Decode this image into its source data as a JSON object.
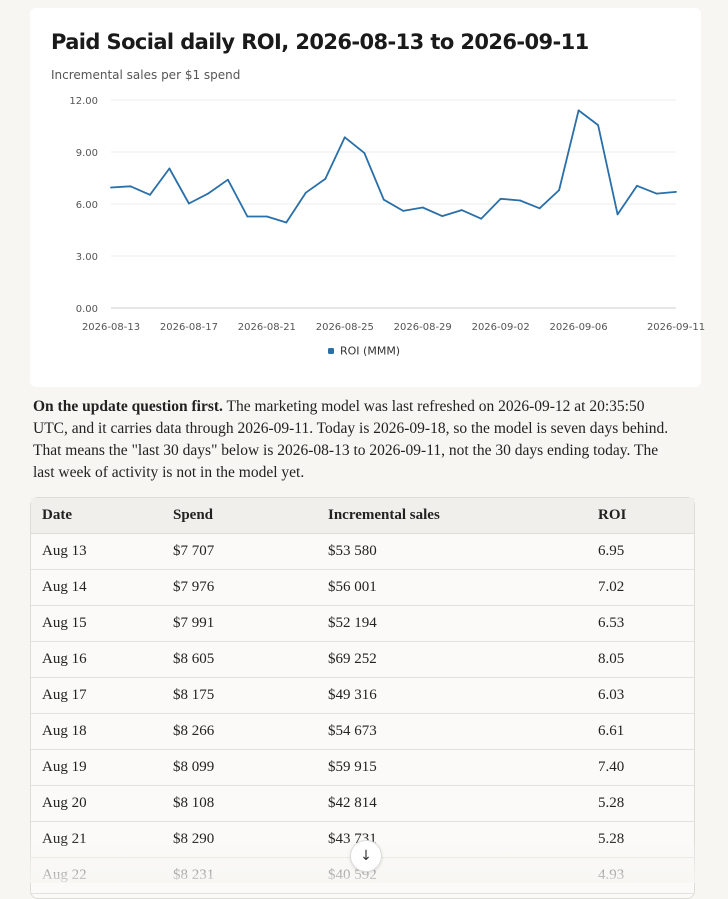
{
  "chart": {
    "title": "Paid Social daily ROI, 2026-08-13 to 2026-09-11",
    "subtitle": "Incremental sales per $1 spend"
  },
  "chart_data": {
    "type": "line",
    "title": "Paid Social daily ROI, 2026-08-13 to 2026-09-11",
    "subtitle": "Incremental sales per $1 spend",
    "x": [
      "2026-08-13",
      "2026-08-14",
      "2026-08-15",
      "2026-08-16",
      "2026-08-17",
      "2026-08-18",
      "2026-08-19",
      "2026-08-20",
      "2026-08-21",
      "2026-08-22",
      "2026-08-23",
      "2026-08-24",
      "2026-08-25",
      "2026-08-26",
      "2026-08-27",
      "2026-08-28",
      "2026-08-29",
      "2026-08-30",
      "2026-08-31",
      "2026-09-01",
      "2026-09-02",
      "2026-09-03",
      "2026-09-04",
      "2026-09-05",
      "2026-09-06",
      "2026-09-07",
      "2026-09-08",
      "2026-09-09",
      "2026-09-10",
      "2026-09-11"
    ],
    "series": [
      {
        "name": "ROI (MMM)",
        "color": "#2a6fa8",
        "values": [
          6.95,
          7.02,
          6.53,
          8.05,
          6.03,
          6.61,
          7.4,
          5.28,
          5.28,
          4.93,
          6.65,
          7.45,
          9.85,
          8.95,
          6.25,
          5.6,
          5.8,
          5.3,
          5.65,
          5.15,
          6.3,
          6.2,
          5.75,
          6.8,
          11.4,
          10.55,
          5.4,
          7.05,
          6.6,
          6.7
        ]
      }
    ],
    "xticks": [
      "2026-08-13",
      "2026-08-17",
      "2026-08-21",
      "2026-08-25",
      "2026-08-29",
      "2026-09-02",
      "2026-09-06",
      "2026-09-11"
    ],
    "yticks": [
      "0.00",
      "3.00",
      "6.00",
      "9.00",
      "12.00"
    ],
    "ylim": [
      0,
      12
    ],
    "grid": true,
    "legend": "bottom-center"
  },
  "summary": {
    "lead": "On the update question first.",
    "body": " The marketing model was last refreshed on 2026-09-12 at 20:35:50 UTC, and it carries data through 2026-09-11. Today is 2026-09-18, so the model is seven days behind. That means the \"last 30 days\" below is 2026-08-13 to 2026-09-11, not the 30 days ending today. The last week of activity is not in the model yet."
  },
  "table": {
    "headers": [
      "Date",
      "Spend",
      "Incremental sales",
      "ROI"
    ],
    "rows": [
      [
        "Aug 13",
        "$7 707",
        "$53 580",
        "6.95"
      ],
      [
        "Aug 14",
        "$7 976",
        "$56 001",
        "7.02"
      ],
      [
        "Aug 15",
        "$7 991",
        "$52 194",
        "6.53"
      ],
      [
        "Aug 16",
        "$8 605",
        "$69 252",
        "8.05"
      ],
      [
        "Aug 17",
        "$8 175",
        "$49 316",
        "6.03"
      ],
      [
        "Aug 18",
        "$8 266",
        "$54 673",
        "6.61"
      ],
      [
        "Aug 19",
        "$8 099",
        "$59 915",
        "7.40"
      ],
      [
        "Aug 20",
        "$8 108",
        "$42 814",
        "5.28"
      ],
      [
        "Aug 21",
        "$8 290",
        "$43 731",
        "5.28"
      ],
      [
        "Aug 22",
        "$8 231",
        "$40 592",
        "4.93"
      ]
    ]
  },
  "scroll_button": {
    "icon": "arrow-down-icon",
    "glyph": "↓"
  }
}
